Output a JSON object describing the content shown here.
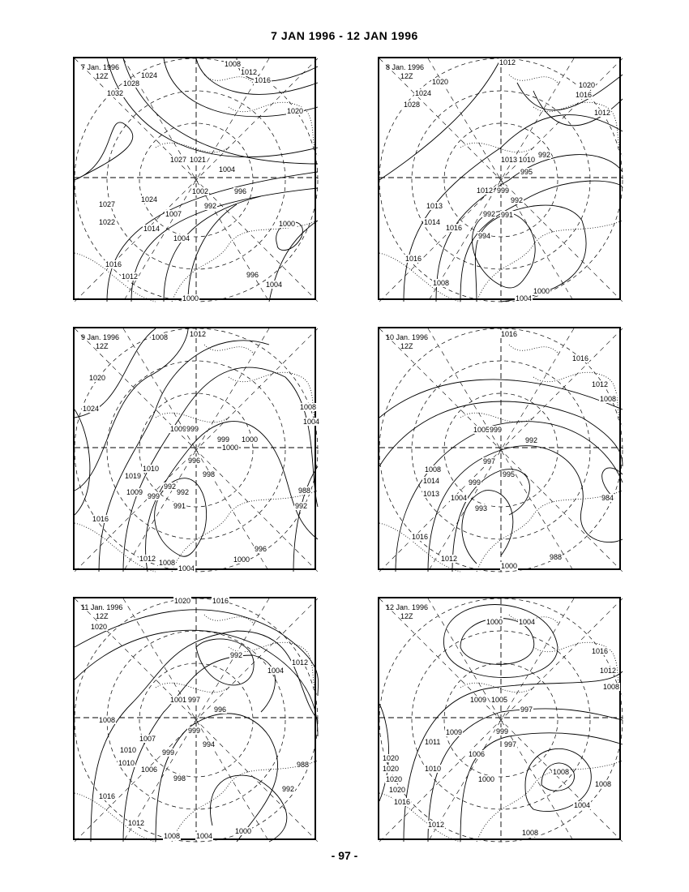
{
  "title": "7 JAN 1996 - 12 JAN 1996",
  "page_number": "- 97 -",
  "panels": [
    {
      "date": "7 Jan. 1996",
      "time": "12Z",
      "labels": [
        "1008",
        "1012",
        "1016",
        "1024",
        "1028",
        "1032",
        "1020",
        "1027",
        "1021",
        "1004",
        "1002",
        "996",
        "1027",
        "1024",
        "992",
        "1007",
        "1022",
        "1014",
        "1000",
        "1004",
        "1016",
        "1012",
        "996",
        "1004",
        "1000"
      ]
    },
    {
      "date": "8 Jan. 1996",
      "time": "12Z",
      "labels": [
        "1012",
        "1020",
        "1024",
        "1028",
        "1020",
        "1016",
        "1012",
        "992",
        "1013",
        "1010",
        "995",
        "1012",
        "999",
        "992",
        "991",
        "1013",
        "992",
        "1014",
        "1016",
        "994",
        "1016",
        "1008",
        "1000",
        "1004"
      ]
    },
    {
      "date": "9 Jan. 1996",
      "time": "12Z",
      "labels": [
        "1012",
        "1008",
        "1020",
        "1024",
        "1008",
        "1004",
        "1009",
        "999",
        "999",
        "1000",
        "1000",
        "996",
        "1010",
        "998",
        "1019",
        "992",
        "1009",
        "992",
        "999",
        "991",
        "1016",
        "988",
        "992",
        "996",
        "1012",
        "1008",
        "1004",
        "1000"
      ]
    },
    {
      "date": "10 Jan. 1996",
      "time": "12Z",
      "labels": [
        "1016",
        "1016",
        "1012",
        "1008",
        "1005",
        "999",
        "992",
        "997",
        "1008",
        "995",
        "1014",
        "999",
        "1013",
        "1004",
        "984",
        "993",
        "1016",
        "1012",
        "1000",
        "988"
      ]
    },
    {
      "date": "11 Jan. 1996",
      "time": "12Z",
      "labels": [
        "1020",
        "1016",
        "1020",
        "992",
        "1004",
        "1012",
        "1001",
        "997",
        "996",
        "1008",
        "999",
        "1007",
        "994",
        "1010",
        "999",
        "988",
        "1010",
        "1006",
        "998",
        "992",
        "1016",
        "1012",
        "1008",
        "1004",
        "1000"
      ]
    },
    {
      "date": "12 Jan. 1996",
      "time": "12Z",
      "labels": [
        "1000",
        "1004",
        "1016",
        "1012",
        "1008",
        "1009",
        "1005",
        "997",
        "999",
        "1011",
        "1009",
        "997",
        "1006",
        "1020",
        "1010",
        "1008",
        "1020",
        "1000",
        "1020",
        "1008",
        "1020",
        "1004",
        "1016",
        "1012",
        "1008"
      ]
    }
  ]
}
